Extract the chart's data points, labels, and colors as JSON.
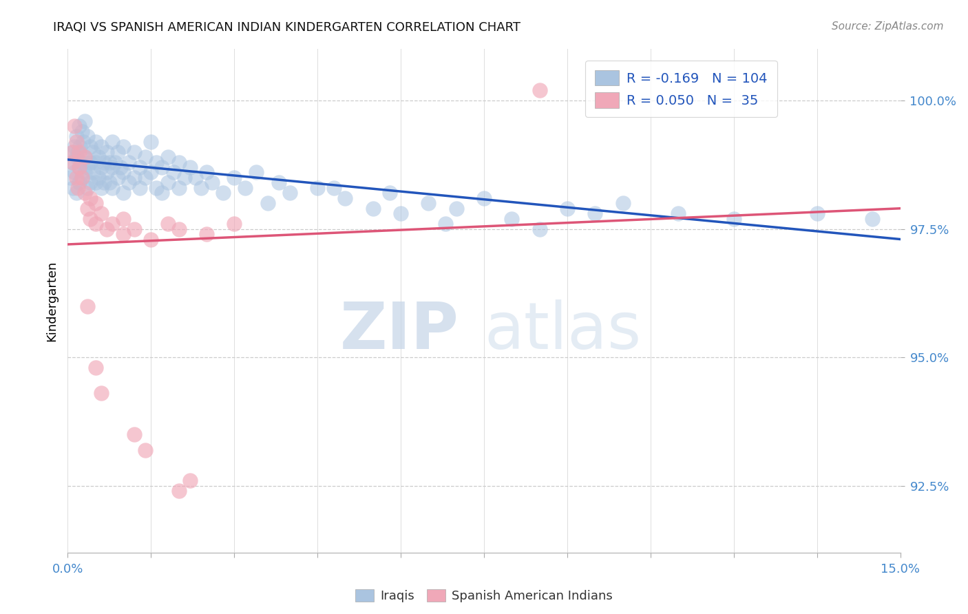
{
  "title": "IRAQI VS SPANISH AMERICAN INDIAN KINDERGARTEN CORRELATION CHART",
  "source": "Source: ZipAtlas.com",
  "ylabel_label": "Kindergarten",
  "xlim": [
    0.0,
    15.0
  ],
  "ylim": [
    91.2,
    101.0
  ],
  "ytick_vals": [
    92.5,
    95.0,
    97.5,
    100.0
  ],
  "xtick_vals": [
    0.0,
    1.5,
    3.0,
    4.5,
    6.0,
    7.5,
    9.0,
    10.5,
    12.0,
    13.5,
    15.0
  ],
  "xtick_labels": [
    "0.0%",
    "",
    "",
    "",
    "",
    "",
    "",
    "",
    "",
    "",
    "15.0%"
  ],
  "legend_blue_r": "-0.169",
  "legend_blue_n": "104",
  "legend_pink_r": "0.050",
  "legend_pink_n": " 35",
  "blue_color": "#aac4e0",
  "pink_color": "#f0a8b8",
  "blue_line_color": "#2255bb",
  "pink_line_color": "#dd5577",
  "blue_scatter": [
    [
      0.05,
      98.5
    ],
    [
      0.08,
      98.8
    ],
    [
      0.1,
      99.0
    ],
    [
      0.1,
      98.3
    ],
    [
      0.12,
      99.1
    ],
    [
      0.12,
      98.6
    ],
    [
      0.15,
      99.3
    ],
    [
      0.15,
      98.9
    ],
    [
      0.15,
      98.2
    ],
    [
      0.18,
      99.0
    ],
    [
      0.2,
      99.5
    ],
    [
      0.2,
      98.7
    ],
    [
      0.2,
      98.4
    ],
    [
      0.22,
      99.1
    ],
    [
      0.25,
      99.4
    ],
    [
      0.25,
      98.8
    ],
    [
      0.25,
      98.5
    ],
    [
      0.28,
      99.2
    ],
    [
      0.3,
      99.6
    ],
    [
      0.3,
      98.9
    ],
    [
      0.3,
      98.6
    ],
    [
      0.35,
      99.3
    ],
    [
      0.35,
      98.7
    ],
    [
      0.35,
      98.3
    ],
    [
      0.4,
      99.1
    ],
    [
      0.4,
      98.8
    ],
    [
      0.4,
      98.4
    ],
    [
      0.45,
      99.0
    ],
    [
      0.45,
      98.6
    ],
    [
      0.5,
      99.2
    ],
    [
      0.5,
      98.8
    ],
    [
      0.5,
      98.4
    ],
    [
      0.55,
      98.9
    ],
    [
      0.55,
      98.5
    ],
    [
      0.6,
      99.1
    ],
    [
      0.6,
      98.7
    ],
    [
      0.6,
      98.3
    ],
    [
      0.65,
      98.8
    ],
    [
      0.65,
      98.4
    ],
    [
      0.7,
      99.0
    ],
    [
      0.7,
      98.6
    ],
    [
      0.75,
      98.8
    ],
    [
      0.75,
      98.4
    ],
    [
      0.8,
      99.2
    ],
    [
      0.8,
      98.7
    ],
    [
      0.8,
      98.3
    ],
    [
      0.85,
      98.8
    ],
    [
      0.9,
      99.0
    ],
    [
      0.9,
      98.5
    ],
    [
      0.95,
      98.7
    ],
    [
      1.0,
      99.1
    ],
    [
      1.0,
      98.6
    ],
    [
      1.0,
      98.2
    ],
    [
      1.1,
      98.8
    ],
    [
      1.1,
      98.4
    ],
    [
      1.2,
      99.0
    ],
    [
      1.2,
      98.5
    ],
    [
      1.3,
      98.7
    ],
    [
      1.3,
      98.3
    ],
    [
      1.4,
      98.9
    ],
    [
      1.4,
      98.5
    ],
    [
      1.5,
      99.2
    ],
    [
      1.5,
      98.6
    ],
    [
      1.6,
      98.8
    ],
    [
      1.6,
      98.3
    ],
    [
      1.7,
      98.7
    ],
    [
      1.7,
      98.2
    ],
    [
      1.8,
      98.9
    ],
    [
      1.8,
      98.4
    ],
    [
      1.9,
      98.6
    ],
    [
      2.0,
      98.8
    ],
    [
      2.0,
      98.3
    ],
    [
      2.1,
      98.5
    ],
    [
      2.2,
      98.7
    ],
    [
      2.3,
      98.5
    ],
    [
      2.4,
      98.3
    ],
    [
      2.5,
      98.6
    ],
    [
      2.6,
      98.4
    ],
    [
      2.8,
      98.2
    ],
    [
      3.0,
      98.5
    ],
    [
      3.2,
      98.3
    ],
    [
      3.4,
      98.6
    ],
    [
      3.6,
      98.0
    ],
    [
      3.8,
      98.4
    ],
    [
      4.0,
      98.2
    ],
    [
      4.5,
      98.3
    ],
    [
      5.0,
      98.1
    ],
    [
      5.5,
      97.9
    ],
    [
      5.8,
      98.2
    ],
    [
      6.0,
      97.8
    ],
    [
      6.5,
      98.0
    ],
    [
      7.0,
      97.9
    ],
    [
      7.5,
      98.1
    ],
    [
      8.0,
      97.7
    ],
    [
      9.0,
      97.9
    ],
    [
      9.5,
      97.8
    ],
    [
      10.0,
      98.0
    ],
    [
      11.0,
      97.8
    ],
    [
      12.0,
      97.7
    ],
    [
      13.5,
      97.8
    ],
    [
      14.5,
      97.7
    ],
    [
      4.8,
      98.3
    ],
    [
      6.8,
      97.6
    ],
    [
      8.5,
      97.5
    ]
  ],
  "pink_scatter": [
    [
      0.08,
      99.0
    ],
    [
      0.1,
      98.8
    ],
    [
      0.12,
      99.5
    ],
    [
      0.15,
      98.5
    ],
    [
      0.15,
      99.2
    ],
    [
      0.18,
      98.3
    ],
    [
      0.2,
      99.0
    ],
    [
      0.2,
      98.7
    ],
    [
      0.25,
      98.5
    ],
    [
      0.3,
      98.9
    ],
    [
      0.3,
      98.2
    ],
    [
      0.35,
      97.9
    ],
    [
      0.4,
      98.1
    ],
    [
      0.4,
      97.7
    ],
    [
      0.5,
      98.0
    ],
    [
      0.5,
      97.6
    ],
    [
      0.6,
      97.8
    ],
    [
      0.7,
      97.5
    ],
    [
      0.8,
      97.6
    ],
    [
      1.0,
      97.7
    ],
    [
      1.0,
      97.4
    ],
    [
      1.2,
      97.5
    ],
    [
      1.5,
      97.3
    ],
    [
      1.8,
      97.6
    ],
    [
      2.0,
      97.5
    ],
    [
      2.5,
      97.4
    ],
    [
      3.0,
      97.6
    ],
    [
      0.35,
      96.0
    ],
    [
      0.5,
      94.8
    ],
    [
      0.6,
      94.3
    ],
    [
      1.2,
      93.5
    ],
    [
      1.4,
      93.2
    ],
    [
      2.2,
      92.6
    ],
    [
      2.0,
      92.4
    ],
    [
      8.5,
      100.2
    ]
  ],
  "blue_line_x": [
    0.0,
    15.0
  ],
  "blue_line_y": [
    98.85,
    97.3
  ],
  "pink_line_x": [
    0.0,
    15.0
  ],
  "pink_line_y": [
    97.2,
    97.9
  ],
  "watermark_zip": "ZIP",
  "watermark_atlas": "atlas",
  "background_color": "#ffffff"
}
